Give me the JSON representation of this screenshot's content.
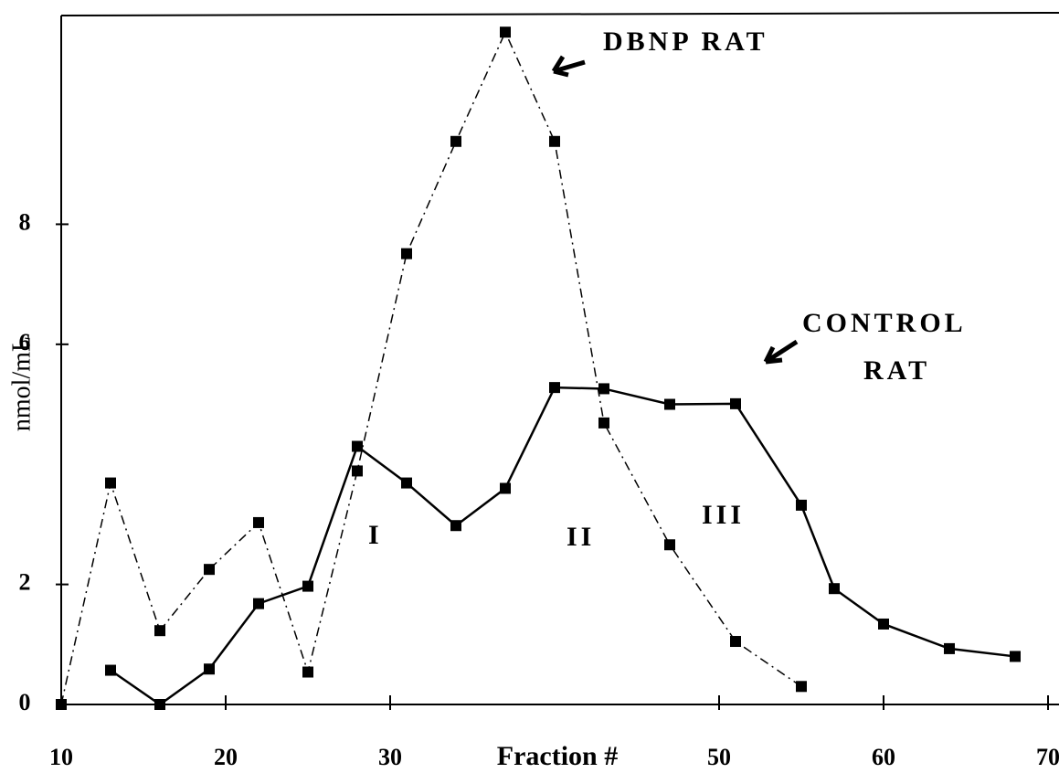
{
  "chart_data": {
    "type": "line",
    "xlabel": "Fraction #",
    "ylabel": "nmol/mL",
    "xlim": [
      10,
      70.5
    ],
    "ylim": [
      0,
      11.5
    ],
    "xticks": [
      10,
      20,
      30,
      50,
      60,
      70
    ],
    "yticks": [
      0,
      2,
      6,
      8
    ],
    "series": [
      {
        "name": "CONTROL RAT",
        "color": "#000000",
        "style": "solid",
        "x": [
          13,
          16,
          19,
          22,
          25,
          28,
          31,
          34,
          37,
          40,
          43,
          47,
          51,
          55,
          57,
          60,
          64,
          68
        ],
        "values": [
          0.57,
          0,
          0.59,
          1.68,
          1.97,
          4.3,
          3.69,
          2.98,
          3.6,
          5.28,
          5.26,
          5.0,
          5.01,
          3.32,
          1.93,
          1.34,
          0.93,
          0.8
        ]
      },
      {
        "name": "DBNP RAT",
        "color": "#000000",
        "style": "dashed",
        "x": [
          10,
          13,
          16,
          19,
          22,
          25,
          28,
          31,
          34,
          37,
          40,
          43,
          47,
          51,
          55
        ],
        "values": [
          0,
          3.69,
          1.23,
          2.25,
          3.03,
          0.54,
          3.89,
          7.51,
          9.38,
          11.2,
          9.38,
          4.69,
          2.66,
          1.05,
          0.3
        ]
      }
    ],
    "annotations": [
      "DBNP RAT",
      "CONTROL",
      "RAT",
      "I",
      "II",
      "III"
    ]
  }
}
